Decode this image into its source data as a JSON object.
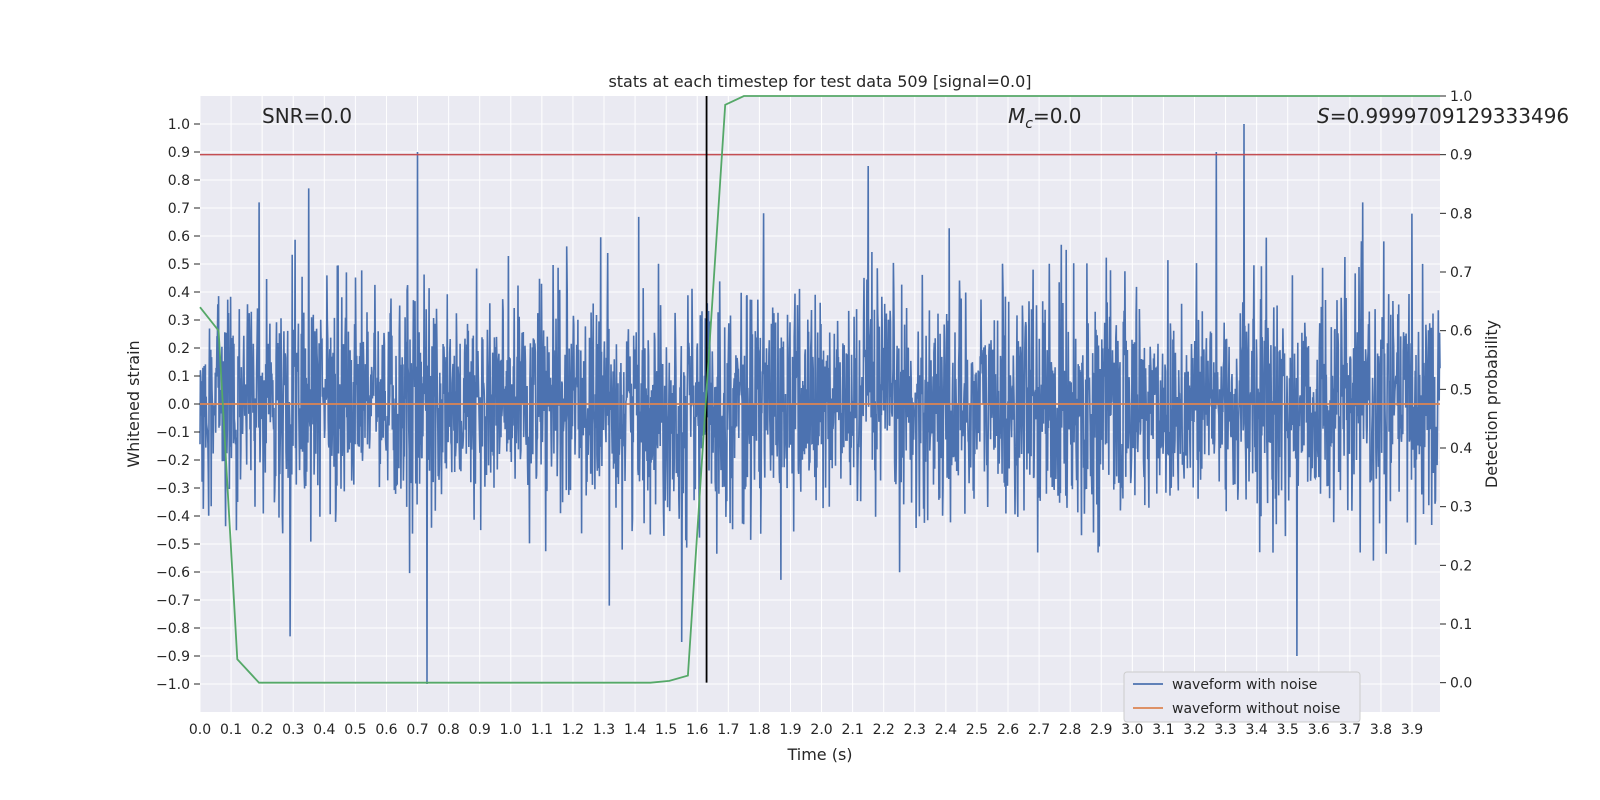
{
  "chart_data": {
    "type": "line",
    "title": "stats at each timestep for test data 509 [signal=0.0]",
    "xlabel": "Time (s)",
    "ylabel_left": "Whitened strain",
    "ylabel_right": "Detection probability",
    "xlim": [
      0.0,
      3.99
    ],
    "ylim_left": [
      -1.1,
      1.1
    ],
    "ylim_right": [
      -0.05,
      1.0
    ],
    "x_ticks": [
      "0.0",
      "0.1",
      "0.2",
      "0.3",
      "0.4",
      "0.5",
      "0.6",
      "0.7",
      "0.8",
      "0.9",
      "1.0",
      "1.1",
      "1.2",
      "1.3",
      "1.4",
      "1.5",
      "1.6",
      "1.7",
      "1.8",
      "1.9",
      "2.0",
      "2.1",
      "2.2",
      "2.3",
      "2.4",
      "2.5",
      "2.6",
      "2.7",
      "2.8",
      "2.9",
      "3.0",
      "3.1",
      "3.2",
      "3.3",
      "3.4",
      "3.5",
      "3.6",
      "3.7",
      "3.8",
      "3.9"
    ],
    "y_ticks_left": [
      "1.0",
      "0.9",
      "0.8",
      "0.7",
      "0.6",
      "0.5",
      "0.4",
      "0.3",
      "0.2",
      "0.1",
      "0.0",
      "−0.1",
      "−0.2",
      "−0.3",
      "−0.4",
      "−0.5",
      "−0.6",
      "−0.7",
      "−0.8",
      "−0.9",
      "−1.0"
    ],
    "y_ticks_right": [
      "1.0",
      "0.9",
      "0.8",
      "0.7",
      "0.6",
      "0.5",
      "0.4",
      "0.3",
      "0.2",
      "0.1",
      "0.0"
    ],
    "grid": true,
    "legend_position": "bottom-right",
    "legend": [
      "waveform with noise",
      "waveform without noise"
    ],
    "annotations": {
      "snr": "SNR=0.0",
      "mc_symbol": "M",
      "mc_sub": "c",
      "mc_value": "=0.0",
      "s_symbol": "S",
      "s_value": "=0.9999709129333496"
    },
    "series": [
      {
        "name": "waveform with noise",
        "axis": "left",
        "color": "#4c72b0",
        "description": "random noise envelope, approx within ±0.4 with spikes",
        "spikes": [
          {
            "x": 0.7,
            "y": 0.9
          },
          {
            "x": 0.73,
            "y": -1.0
          },
          {
            "x": 0.35,
            "y": 0.77
          },
          {
            "x": 0.29,
            "y": -0.83
          },
          {
            "x": 0.19,
            "y": 0.72
          },
          {
            "x": 2.15,
            "y": 0.85
          },
          {
            "x": 3.27,
            "y": 0.9
          },
          {
            "x": 3.36,
            "y": 1.0
          },
          {
            "x": 3.53,
            "y": -0.9
          },
          {
            "x": 1.55,
            "y": -0.85
          },
          {
            "x": 3.9,
            "y": 0.68
          }
        ]
      },
      {
        "name": "waveform without noise",
        "axis": "left",
        "color": "#dd8452",
        "x": [
          0.0,
          3.99
        ],
        "y": [
          0.0,
          0.0
        ]
      },
      {
        "name": "detection probability",
        "axis": "right",
        "color": "#55a868",
        "x": [
          0.0,
          0.06,
          0.12,
          0.19,
          0.5,
          1.0,
          1.45,
          1.51,
          1.57,
          1.63,
          1.69,
          1.75,
          3.99
        ],
        "y": [
          0.64,
          0.6,
          0.04,
          0.0,
          0.0,
          0.0,
          0.0,
          0.003,
          0.012,
          0.5,
          0.985,
          1.0,
          1.0
        ]
      }
    ],
    "threshold_line": {
      "axis": "right",
      "y": 0.9,
      "color": "#c44e52"
    },
    "vertical_line": {
      "x": 1.63,
      "color": "#000000"
    }
  }
}
